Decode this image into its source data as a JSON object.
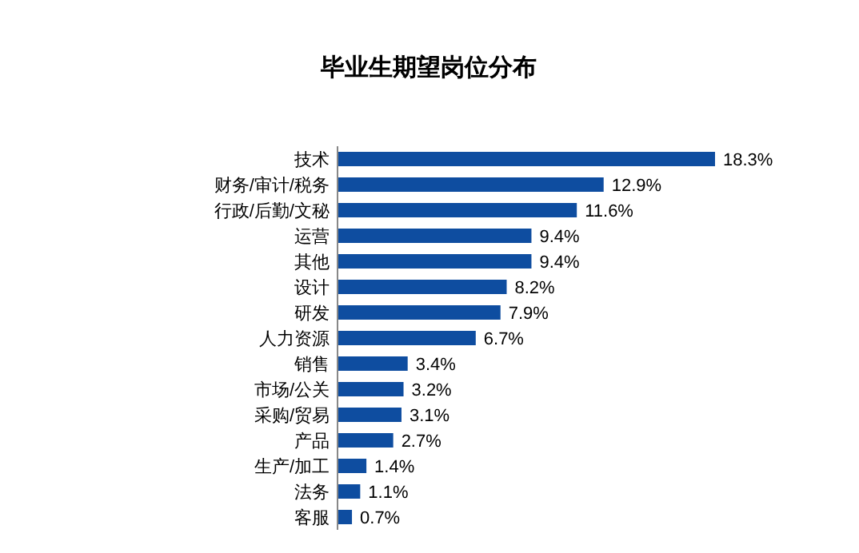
{
  "chart_data": {
    "type": "bar",
    "orientation": "horizontal",
    "title": "毕业生期望岗位分布",
    "categories": [
      "技术",
      "财务/审计/税务",
      "行政/后勤/文秘",
      "运营",
      "其他",
      "设计",
      "研发",
      "人力资源",
      "销售",
      "市场/公关",
      "采购/贸易",
      "产品",
      "生产/加工",
      "法务",
      "客服"
    ],
    "values": [
      18.3,
      12.9,
      11.6,
      9.4,
      9.4,
      8.2,
      7.9,
      6.7,
      3.4,
      3.2,
      3.1,
      2.7,
      1.4,
      1.1,
      0.7
    ],
    "value_labels": [
      "18.3%",
      "12.9%",
      "11.6%",
      "9.4%",
      "9.4%",
      "8.2%",
      "7.9%",
      "6.7%",
      "3.4%",
      "3.2%",
      "3.1%",
      "2.7%",
      "1.4%",
      "1.1%",
      "0.7%"
    ],
    "color": "#0e4da0"
  }
}
